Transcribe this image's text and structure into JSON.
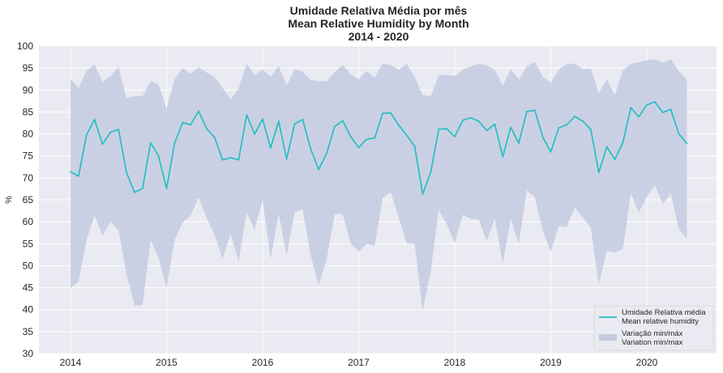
{
  "chart_data": {
    "type": "line",
    "title": [
      "Umidade Relativa Média por mês",
      "Mean Relative Humidity by Month",
      "2014 - 2020"
    ],
    "ylabel": "%",
    "xlabel": "",
    "ylim": [
      30,
      100
    ],
    "yticks": [
      30,
      35,
      40,
      45,
      50,
      55,
      60,
      65,
      70,
      75,
      80,
      85,
      90,
      95,
      100
    ],
    "xticks": [
      "2014",
      "2015",
      "2016",
      "2017",
      "2018",
      "2019",
      "2020"
    ],
    "x_start": "2014-01",
    "x_end": "2020-06",
    "grid": true,
    "legend_position": "bottom-right",
    "legend": [
      {
        "label_pt": "Umidade Relativa média",
        "label_en": "Mean relative humidity"
      },
      {
        "label_pt": "Variação min/máx",
        "label_en": "Variation min/max"
      }
    ],
    "colors": {
      "mean_line": "#26bec4",
      "band": "#c4cbe0",
      "plot_bg": "#eaeaf2",
      "grid": "#ffffff"
    },
    "series": [
      {
        "name": "Umidade Relativa média / Mean relative humidity",
        "kind": "line",
        "values": [
          71.4,
          70.4,
          79.8,
          83.3,
          77.7,
          80.4,
          81.0,
          71.2,
          66.7,
          67.6,
          78.0,
          75.0,
          67.6,
          77.9,
          82.6,
          82.1,
          85.2,
          81.2,
          79.2,
          74.1,
          74.6,
          74.1,
          84.3,
          80.0,
          83.4,
          76.8,
          82.9,
          74.3,
          82.3,
          83.3,
          76.6,
          71.9,
          75.6,
          81.7,
          83.0,
          79.4,
          76.9,
          78.8,
          79.1,
          84.7,
          84.8,
          82.0,
          79.7,
          77.2,
          66.3,
          71.3,
          81.1,
          81.2,
          79.4,
          83.1,
          83.7,
          82.9,
          80.8,
          82.2,
          74.8,
          81.5,
          77.9,
          85.1,
          85.4,
          79.3,
          75.9,
          81.4,
          82.1,
          84.0,
          82.9,
          81.0,
          71.2,
          77.1,
          74.2,
          78.0,
          86.0,
          83.9,
          86.6,
          87.3,
          84.9,
          85.6,
          80.0,
          77.9
        ]
      },
      {
        "name": "Variação min/máx / Variation min/max - max",
        "kind": "band_upper",
        "values": [
          92.5,
          90.5,
          94.3,
          95.9,
          91.8,
          93.2,
          95.3,
          88.2,
          88.6,
          88.6,
          92.0,
          91.3,
          85.8,
          92.5,
          95.0,
          93.7,
          95.2,
          94.0,
          93.0,
          90.5,
          87.9,
          90.4,
          96.0,
          93.4,
          94.7,
          93.1,
          95.4,
          91.0,
          94.7,
          94.2,
          92.3,
          92.0,
          92.0,
          94.1,
          95.7,
          93.6,
          92.5,
          94.3,
          92.8,
          96.0,
          95.7,
          94.6,
          96.0,
          93.0,
          88.8,
          88.6,
          93.4,
          93.4,
          93.2,
          94.6,
          95.4,
          96.0,
          95.6,
          94.6,
          91.0,
          94.8,
          92.4,
          95.4,
          96.4,
          93.0,
          91.7,
          94.6,
          96.0,
          96.0,
          94.8,
          94.9,
          89.4,
          92.4,
          88.9,
          94.4,
          96.0,
          96.3,
          96.8,
          97.0,
          96.2,
          97.0,
          94.3,
          92.3
        ]
      },
      {
        "name": "Variação min/máx / Variation min/max - min",
        "kind": "band_lower",
        "values": [
          45.0,
          46.3,
          55.9,
          61.4,
          56.9,
          60.0,
          58.1,
          48.0,
          41.0,
          41.0,
          55.8,
          51.8,
          45.0,
          55.9,
          59.8,
          61.4,
          65.5,
          60.9,
          57.1,
          51.5,
          57.3,
          51.0,
          62.0,
          58.2,
          64.9,
          51.5,
          61.9,
          52.4,
          62.2,
          62.8,
          52.4,
          45.5,
          51.5,
          61.7,
          61.7,
          55.1,
          53.2,
          55.0,
          54.6,
          65.4,
          66.8,
          60.9,
          55.1,
          55.0,
          39.7,
          48.7,
          62.7,
          59.5,
          55.1,
          61.6,
          60.6,
          60.5,
          55.7,
          60.7,
          50.5,
          60.7,
          55.0,
          67.2,
          65.6,
          58.0,
          53.2,
          59.0,
          58.9,
          63.3,
          61.0,
          58.7,
          45.6,
          53.4,
          53.0,
          53.8,
          66.5,
          62.1,
          65.7,
          68.3,
          64.0,
          66.4,
          58.4,
          56.1
        ]
      }
    ]
  }
}
